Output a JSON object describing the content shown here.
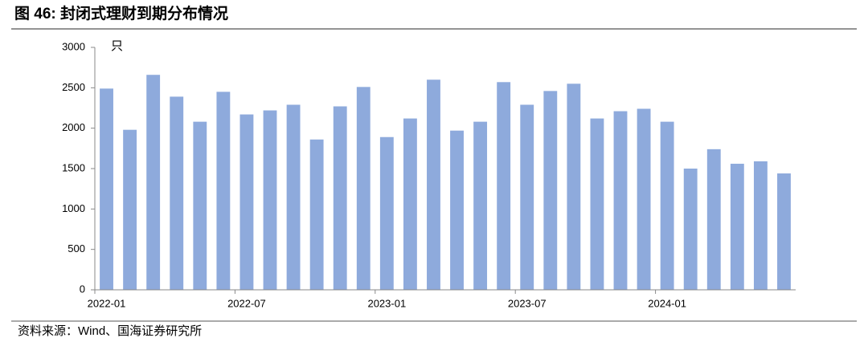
{
  "chart_data": {
    "type": "bar",
    "title": "图 46:  封闭式理财到期分布情况",
    "ylabel": "只",
    "source": "资料来源：Wind、国海证券研究所",
    "categories": [
      "2022-01",
      null,
      null,
      null,
      null,
      null,
      "2022-07",
      null,
      null,
      null,
      null,
      null,
      "2023-01",
      null,
      null,
      null,
      null,
      null,
      "2023-07",
      null,
      null,
      null,
      null,
      null,
      "2024-01",
      null,
      null,
      null,
      null,
      null
    ],
    "values": [
      2490,
      1980,
      2660,
      2390,
      2080,
      2450,
      2170,
      2220,
      2290,
      1860,
      2270,
      2510,
      1890,
      2120,
      2600,
      1970,
      2080,
      2570,
      2290,
      2460,
      2550,
      2120,
      2210,
      2240,
      2080,
      1500,
      1740,
      1560,
      1590,
      1440
    ],
    "color": "#8eaadc",
    "ylim": [
      0,
      3000
    ],
    "yticks": [
      0,
      500,
      1000,
      1500,
      2000,
      2500,
      3000
    ],
    "grid": false
  }
}
